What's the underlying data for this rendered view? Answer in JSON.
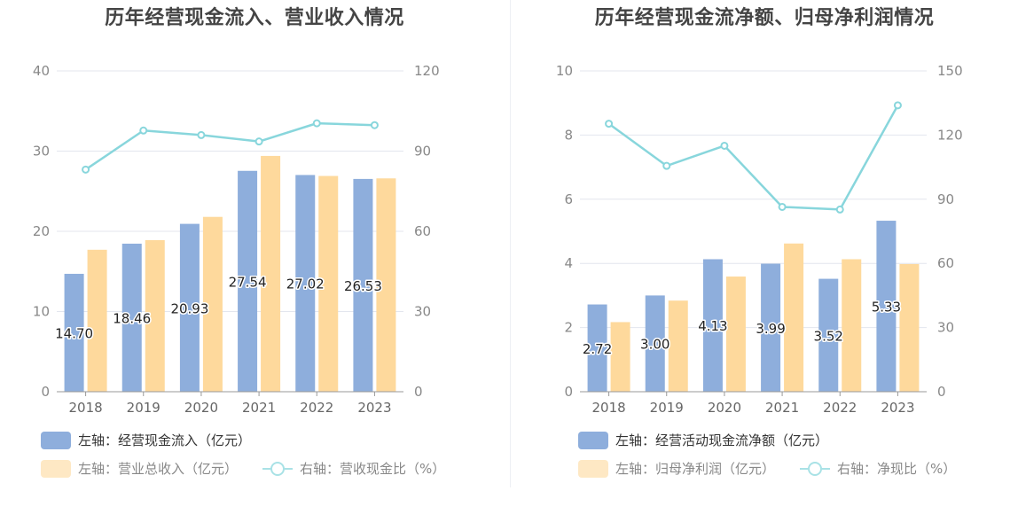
{
  "chart_data": [
    {
      "type": "bar",
      "title": "历年经营现金流入、营业收入情况",
      "categories": [
        "2018",
        "2019",
        "2020",
        "2021",
        "2022",
        "2023"
      ],
      "series": [
        {
          "name": "左轴：经营现金流入（亿元）",
          "axis": "left",
          "type": "bar",
          "color": "#8eaedc",
          "values": [
            14.7,
            18.46,
            20.93,
            27.54,
            27.02,
            26.53
          ],
          "labels": [
            "14.70",
            "18.46",
            "20.93",
            "27.54",
            "27.02",
            "26.53"
          ]
        },
        {
          "name": "左轴：营业总收入（亿元）",
          "axis": "left",
          "type": "bar",
          "color": "#fed99c",
          "values": [
            17.7,
            18.9,
            21.8,
            29.4,
            26.9,
            26.6
          ]
        },
        {
          "name": "右轴：营收现金比（%）",
          "axis": "right",
          "type": "line",
          "color": "#88d6dc",
          "values": [
            83.1,
            97.7,
            96.0,
            93.6,
            100.4,
            99.7
          ]
        }
      ],
      "y_left": {
        "min": 0,
        "max": 40,
        "ticks": [
          "0",
          "10",
          "20",
          "30",
          "40"
        ]
      },
      "y_right": {
        "min": 0,
        "max": 120,
        "ticks": [
          "0",
          "30",
          "60",
          "90",
          "120"
        ]
      },
      "grid": true,
      "legend_position": "bottom-left"
    },
    {
      "type": "bar",
      "title": "历年经营现金流净额、归母净利润情况",
      "categories": [
        "2018",
        "2019",
        "2020",
        "2021",
        "2022",
        "2023"
      ],
      "series": [
        {
          "name": "左轴：经营活动现金流净额（亿元）",
          "axis": "left",
          "type": "bar",
          "color": "#8eaedc",
          "values": [
            2.72,
            3.0,
            4.13,
            3.99,
            3.52,
            5.33
          ],
          "labels": [
            "2.72",
            "3.00",
            "4.13",
            "3.99",
            "3.52",
            "5.33"
          ]
        },
        {
          "name": "左轴：归母净利润（亿元）",
          "axis": "left",
          "type": "bar",
          "color": "#fed99c",
          "values": [
            2.17,
            2.84,
            3.59,
            4.62,
            4.13,
            3.98
          ]
        },
        {
          "name": "右轴：净现比（%）",
          "axis": "right",
          "type": "line",
          "color": "#88d6dc",
          "values": [
            125.3,
            105.6,
            115.0,
            86.4,
            85.2,
            133.9
          ]
        }
      ],
      "y_left": {
        "min": 0,
        "max": 10,
        "ticks": [
          "0",
          "2",
          "4",
          "6",
          "8",
          "10"
        ]
      },
      "y_right": {
        "min": 0,
        "max": 150,
        "ticks": [
          "0",
          "30",
          "60",
          "90",
          "120",
          "150"
        ]
      },
      "grid": true,
      "legend_position": "bottom-left"
    }
  ]
}
